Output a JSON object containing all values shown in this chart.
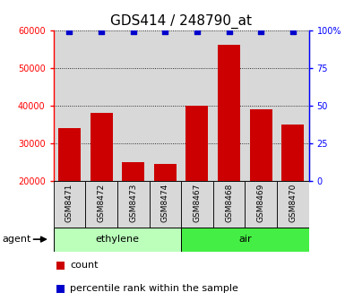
{
  "title": "GDS414 / 248790_at",
  "samples": [
    "GSM8471",
    "GSM8472",
    "GSM8473",
    "GSM8474",
    "GSM8467",
    "GSM8468",
    "GSM8469",
    "GSM8470"
  ],
  "counts": [
    34000,
    38000,
    25000,
    24500,
    40000,
    56000,
    39000,
    35000
  ],
  "percentiles": [
    99,
    99,
    99,
    99,
    99,
    99,
    99,
    99
  ],
  "groups": [
    {
      "label": "ethylene",
      "indices": [
        0,
        1,
        2,
        3
      ],
      "color": "#bbffbb"
    },
    {
      "label": "air",
      "indices": [
        4,
        5,
        6,
        7
      ],
      "color": "#44ee44"
    }
  ],
  "agent_label": "agent",
  "bar_color": "#cc0000",
  "dot_color": "#0000cc",
  "ylim_left": [
    20000,
    60000
  ],
  "yticks_left": [
    20000,
    30000,
    40000,
    50000,
    60000
  ],
  "ylim_right": [
    0,
    100
  ],
  "yticks_right": [
    0,
    25,
    50,
    75,
    100
  ],
  "legend_count_label": "count",
  "legend_pct_label": "percentile rank within the sample",
  "bar_width": 0.7,
  "title_fontsize": 11,
  "tick_fontsize": 7,
  "label_fontsize": 8,
  "col_bg_color": "#d8d8d8",
  "dot_size": 18
}
